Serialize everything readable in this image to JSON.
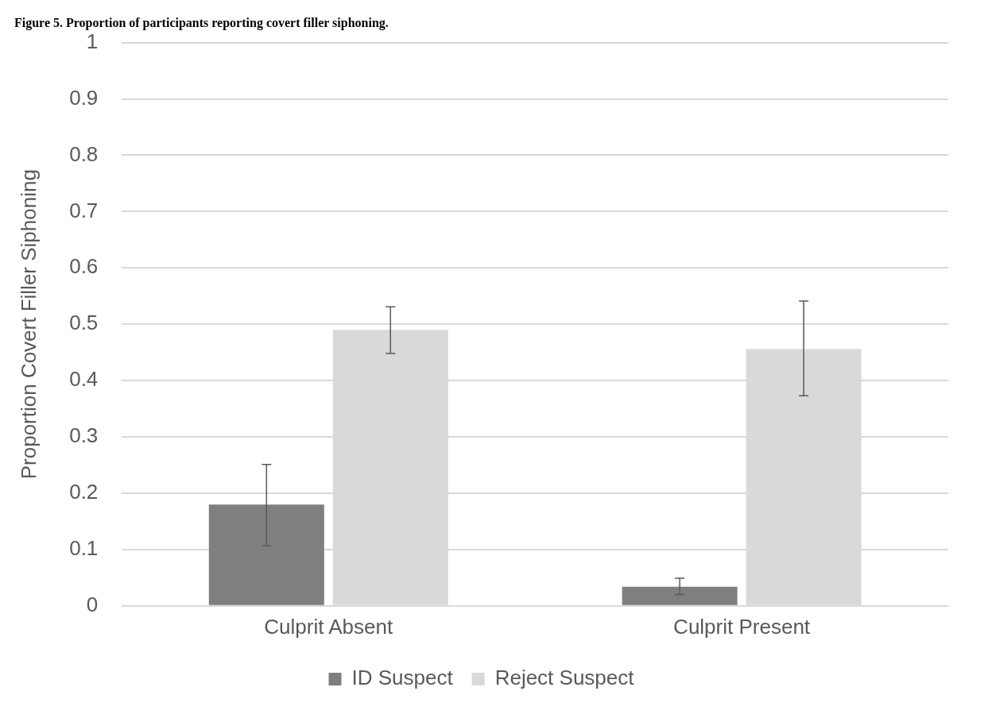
{
  "chart_data": {
    "type": "bar",
    "title": "Figure 5. Proportion of participants reporting covert filler siphoning.",
    "ylabel": "Proportion Covert Filler Siphoning",
    "categories": [
      "Culprit Absent",
      "Culprit Present"
    ],
    "series": [
      {
        "name": "ID Suspect",
        "color": "#7f7f7f",
        "values": [
          0.18,
          0.034
        ],
        "errors": [
          [
            0.107,
            0.251
          ],
          [
            0.02,
            0.049
          ]
        ]
      },
      {
        "name": "Reject Suspect",
        "color": "#d9d9d9",
        "values": [
          0.49,
          0.456
        ],
        "errors": [
          [
            0.448,
            0.531
          ],
          [
            0.373,
            0.541
          ]
        ]
      }
    ],
    "ylim": [
      0,
      1
    ],
    "yticks": [
      0,
      0.1,
      0.2,
      0.3,
      0.4,
      0.5,
      0.6,
      0.7,
      0.8,
      0.9,
      1
    ],
    "grid": "y",
    "legend": "bottom"
  }
}
